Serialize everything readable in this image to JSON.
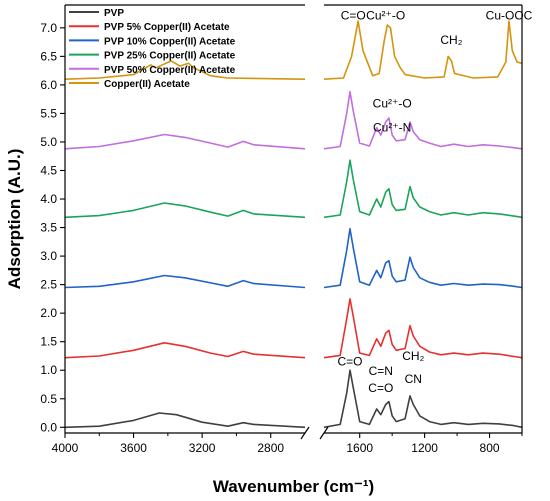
{
  "chart_data": {
    "type": "line",
    "xlabel": "Wavenumber (cm⁻¹)",
    "ylabel": "Adsorption (A.U.)",
    "x_axis_reversed": true,
    "x_axis_broken": true,
    "x_segments": [
      [
        4000,
        2600
      ],
      [
        1820,
        600
      ]
    ],
    "ylim": [
      -0.1,
      7.4
    ],
    "x_ticks": [
      4000,
      3600,
      3200,
      2800,
      1600,
      1200,
      800
    ],
    "y_ticks": [
      0.0,
      0.5,
      1.0,
      1.5,
      2.0,
      2.5,
      3.0,
      3.5,
      4.0,
      4.5,
      5.0,
      5.5,
      6.0,
      6.5,
      7.0
    ],
    "legend_position": "top-left",
    "grid": false,
    "series": [
      {
        "name": "PVP",
        "color": "#404040",
        "baseline": 0.0,
        "points": [
          [
            4000,
            0.0
          ],
          [
            3800,
            0.02
          ],
          [
            3600,
            0.12
          ],
          [
            3450,
            0.25
          ],
          [
            3350,
            0.22
          ],
          [
            3200,
            0.09
          ],
          [
            3050,
            0.02
          ],
          [
            2960,
            0.08
          ],
          [
            2900,
            0.05
          ],
          [
            2600,
            0.0
          ],
          [
            1820,
            0.0
          ],
          [
            1720,
            0.05
          ],
          [
            1680,
            0.6
          ],
          [
            1660,
            1.0
          ],
          [
            1640,
            0.7
          ],
          [
            1600,
            0.1
          ],
          [
            1540,
            0.05
          ],
          [
            1495,
            0.32
          ],
          [
            1470,
            0.22
          ],
          [
            1440,
            0.4
          ],
          [
            1420,
            0.45
          ],
          [
            1400,
            0.2
          ],
          [
            1375,
            0.1
          ],
          [
            1320,
            0.15
          ],
          [
            1290,
            0.55
          ],
          [
            1270,
            0.4
          ],
          [
            1230,
            0.2
          ],
          [
            1170,
            0.1
          ],
          [
            1100,
            0.05
          ],
          [
            1020,
            0.08
          ],
          [
            930,
            0.05
          ],
          [
            840,
            0.07
          ],
          [
            740,
            0.06
          ],
          [
            650,
            0.03
          ],
          [
            600,
            0.0
          ]
        ]
      },
      {
        "name": "PVP 5% Copper(II) Acetate",
        "color": "#e8302f",
        "baseline": 1.22,
        "points": [
          [
            4000,
            1.22
          ],
          [
            3800,
            1.25
          ],
          [
            3600,
            1.35
          ],
          [
            3420,
            1.48
          ],
          [
            3300,
            1.42
          ],
          [
            3150,
            1.3
          ],
          [
            3050,
            1.24
          ],
          [
            2960,
            1.33
          ],
          [
            2900,
            1.28
          ],
          [
            2600,
            1.22
          ],
          [
            1820,
            1.22
          ],
          [
            1720,
            1.26
          ],
          [
            1680,
            1.9
          ],
          [
            1660,
            2.25
          ],
          [
            1640,
            1.95
          ],
          [
            1600,
            1.3
          ],
          [
            1540,
            1.26
          ],
          [
            1495,
            1.55
          ],
          [
            1470,
            1.42
          ],
          [
            1440,
            1.65
          ],
          [
            1420,
            1.7
          ],
          [
            1400,
            1.45
          ],
          [
            1375,
            1.35
          ],
          [
            1320,
            1.38
          ],
          [
            1290,
            1.78
          ],
          [
            1270,
            1.6
          ],
          [
            1230,
            1.42
          ],
          [
            1170,
            1.32
          ],
          [
            1100,
            1.27
          ],
          [
            1020,
            1.3
          ],
          [
            930,
            1.27
          ],
          [
            840,
            1.3
          ],
          [
            740,
            1.28
          ],
          [
            650,
            1.24
          ],
          [
            600,
            1.22
          ]
        ]
      },
      {
        "name": "PVP 10% Copper(II) Acetate",
        "color": "#1f63c6",
        "baseline": 2.45,
        "points": [
          [
            4000,
            2.45
          ],
          [
            3800,
            2.47
          ],
          [
            3600,
            2.55
          ],
          [
            3420,
            2.66
          ],
          [
            3300,
            2.62
          ],
          [
            3150,
            2.53
          ],
          [
            3050,
            2.47
          ],
          [
            2960,
            2.57
          ],
          [
            2900,
            2.52
          ],
          [
            2600,
            2.45
          ],
          [
            1820,
            2.45
          ],
          [
            1720,
            2.49
          ],
          [
            1680,
            3.1
          ],
          [
            1660,
            3.48
          ],
          [
            1640,
            3.15
          ],
          [
            1600,
            2.55
          ],
          [
            1540,
            2.49
          ],
          [
            1495,
            2.75
          ],
          [
            1470,
            2.62
          ],
          [
            1440,
            2.88
          ],
          [
            1420,
            2.92
          ],
          [
            1400,
            2.65
          ],
          [
            1375,
            2.55
          ],
          [
            1320,
            2.58
          ],
          [
            1290,
            2.98
          ],
          [
            1270,
            2.8
          ],
          [
            1230,
            2.62
          ],
          [
            1170,
            2.54
          ],
          [
            1100,
            2.49
          ],
          [
            1020,
            2.52
          ],
          [
            930,
            2.49
          ],
          [
            840,
            2.51
          ],
          [
            740,
            2.5
          ],
          [
            650,
            2.47
          ],
          [
            600,
            2.45
          ]
        ]
      },
      {
        "name": "PVP 25% Copper(II) Acetate",
        "color": "#1aa55a",
        "baseline": 3.68,
        "points": [
          [
            4000,
            3.68
          ],
          [
            3800,
            3.71
          ],
          [
            3600,
            3.8
          ],
          [
            3420,
            3.93
          ],
          [
            3300,
            3.88
          ],
          [
            3150,
            3.77
          ],
          [
            3050,
            3.7
          ],
          [
            2960,
            3.8
          ],
          [
            2900,
            3.74
          ],
          [
            2600,
            3.68
          ],
          [
            1820,
            3.68
          ],
          [
            1720,
            3.72
          ],
          [
            1680,
            4.3
          ],
          [
            1660,
            4.68
          ],
          [
            1640,
            4.35
          ],
          [
            1600,
            3.78
          ],
          [
            1540,
            3.72
          ],
          [
            1495,
            4.0
          ],
          [
            1470,
            3.86
          ],
          [
            1440,
            4.12
          ],
          [
            1420,
            4.18
          ],
          [
            1400,
            3.9
          ],
          [
            1375,
            3.8
          ],
          [
            1320,
            3.82
          ],
          [
            1290,
            4.22
          ],
          [
            1270,
            4.02
          ],
          [
            1230,
            3.86
          ],
          [
            1170,
            3.78
          ],
          [
            1100,
            3.72
          ],
          [
            1020,
            3.76
          ],
          [
            930,
            3.72
          ],
          [
            840,
            3.76
          ],
          [
            740,
            3.74
          ],
          [
            650,
            3.7
          ],
          [
            600,
            3.68
          ]
        ]
      },
      {
        "name": "PVP 50% Copper(II) Acetate",
        "color": "#c06ee0",
        "baseline": 4.88,
        "points": [
          [
            4000,
            4.88
          ],
          [
            3800,
            4.92
          ],
          [
            3600,
            5.02
          ],
          [
            3420,
            5.13
          ],
          [
            3300,
            5.08
          ],
          [
            3150,
            4.98
          ],
          [
            3050,
            4.91
          ],
          [
            2960,
            5.01
          ],
          [
            2900,
            4.95
          ],
          [
            2600,
            4.88
          ],
          [
            1820,
            4.88
          ],
          [
            1720,
            4.92
          ],
          [
            1680,
            5.5
          ],
          [
            1660,
            5.88
          ],
          [
            1640,
            5.55
          ],
          [
            1600,
            4.98
          ],
          [
            1540,
            4.93
          ],
          [
            1495,
            5.25
          ],
          [
            1470,
            5.12
          ],
          [
            1440,
            5.35
          ],
          [
            1420,
            5.42
          ],
          [
            1400,
            5.12
          ],
          [
            1375,
            5.02
          ],
          [
            1320,
            5.04
          ],
          [
            1290,
            5.35
          ],
          [
            1270,
            5.18
          ],
          [
            1230,
            5.04
          ],
          [
            1170,
            4.98
          ],
          [
            1100,
            4.92
          ],
          [
            1020,
            4.96
          ],
          [
            930,
            4.92
          ],
          [
            840,
            4.95
          ],
          [
            740,
            4.93
          ],
          [
            650,
            4.9
          ],
          [
            600,
            4.88
          ]
        ]
      },
      {
        "name": "Copper(II) Acetate",
        "color": "#d4940f",
        "baseline": 6.1,
        "points": [
          [
            4000,
            6.1
          ],
          [
            3800,
            6.12
          ],
          [
            3600,
            6.18
          ],
          [
            3500,
            6.35
          ],
          [
            3470,
            6.3
          ],
          [
            3380,
            6.42
          ],
          [
            3330,
            6.33
          ],
          [
            3280,
            6.38
          ],
          [
            3250,
            6.3
          ],
          [
            3150,
            6.16
          ],
          [
            3050,
            6.12
          ],
          [
            2600,
            6.1
          ],
          [
            1820,
            6.1
          ],
          [
            1700,
            6.12
          ],
          [
            1650,
            6.5
          ],
          [
            1610,
            7.12
          ],
          [
            1580,
            6.6
          ],
          [
            1520,
            6.16
          ],
          [
            1480,
            6.2
          ],
          [
            1450,
            6.75
          ],
          [
            1430,
            7.05
          ],
          [
            1410,
            7.0
          ],
          [
            1385,
            6.5
          ],
          [
            1350,
            6.3
          ],
          [
            1320,
            6.18
          ],
          [
            1200,
            6.12
          ],
          [
            1080,
            6.14
          ],
          [
            1055,
            6.5
          ],
          [
            1035,
            6.42
          ],
          [
            1015,
            6.2
          ],
          [
            900,
            6.12
          ],
          [
            750,
            6.14
          ],
          [
            700,
            6.4
          ],
          [
            680,
            7.12
          ],
          [
            660,
            6.6
          ],
          [
            630,
            6.4
          ],
          [
            600,
            6.38
          ]
        ]
      }
    ],
    "annotations": [
      {
        "id": "co-top",
        "text": "C=O",
        "x": 1640,
        "y": 7.15
      },
      {
        "id": "cu-o-top",
        "text": "Cu²⁺-O",
        "x": 1440,
        "y": 7.15
      },
      {
        "id": "ch2-top",
        "text": "CH₂",
        "x": 1035,
        "y": 6.72
      },
      {
        "id": "cu-ooc",
        "text": "Cu-OOC",
        "x": 680,
        "y": 7.15
      },
      {
        "id": "cu-o-mid",
        "text": "Cu²⁺-O",
        "x": 1400,
        "y": 5.6
      },
      {
        "id": "cu-n-mid",
        "text": "Cu²⁺-N",
        "x": 1400,
        "y": 5.18
      },
      {
        "id": "co-bottom",
        "text": "C=O",
        "x": 1660,
        "y": 1.08
      },
      {
        "id": "cn-eq",
        "text": "C=N",
        "x": 1470,
        "y": 0.92
      },
      {
        "id": "co-low",
        "text": "C=O",
        "x": 1470,
        "y": 0.62
      },
      {
        "id": "ch2-low",
        "text": "CH₂",
        "x": 1270,
        "y": 1.18
      },
      {
        "id": "cn-low",
        "text": "CN",
        "x": 1270,
        "y": 0.78
      }
    ]
  }
}
